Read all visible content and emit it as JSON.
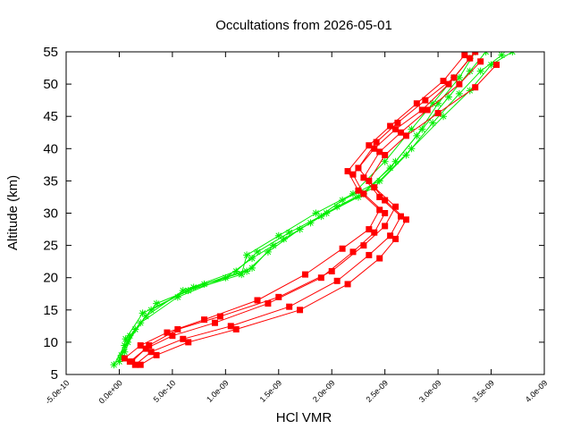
{
  "chart_data": {
    "type": "line",
    "title": "Occultations from 2026-05-01",
    "xlabel": "HCl VMR",
    "ylabel": "Altitude (km)",
    "xlim": [
      -5e-10,
      4e-09
    ],
    "ylim": [
      5,
      55
    ],
    "x_ticks": [
      "-5.0e-10",
      "0.0e+00",
      "5.0e-10",
      "1.0e-09",
      "1.5e-09",
      "2.0e-09",
      "2.5e-09",
      "3.0e-09",
      "3.5e-09",
      "4.0e-09"
    ],
    "y_ticks": [
      "5",
      "10",
      "15",
      "20",
      "25",
      "30",
      "35",
      "40",
      "45",
      "50",
      "55"
    ],
    "grid": false,
    "legend": "none",
    "colors": {
      "green_series": "#00ee00",
      "red_series": "#ff0000"
    },
    "series": [
      {
        "style": "green-star",
        "x": [
          0.0,
          8e-11,
          2.5e-10,
          6e-10,
          1.1e-09,
          1.3e-09,
          1.6e-09,
          1.95e-09,
          2.3e-09,
          2.6e-09,
          2.85e-09,
          3.1e-09,
          3.3e-09,
          3.45e-09
        ],
        "y": [
          7,
          10,
          14,
          18,
          21,
          24,
          27,
          30,
          33,
          38,
          43,
          48,
          52,
          55
        ]
      },
      {
        "style": "green-star",
        "x": [
          2e-11,
          1e-10,
          3e-10,
          7e-10,
          1.2e-09,
          1.4e-09,
          1.7e-09,
          2.05e-09,
          2.4e-09,
          2.7e-09,
          2.95e-09,
          3.2e-09,
          3.4e-09,
          3.6e-09
        ],
        "y": [
          8,
          11,
          15,
          18.5,
          21,
          24,
          27.5,
          31,
          34,
          39,
          44,
          48.5,
          52,
          54.5
        ]
      },
      {
        "style": "green-star",
        "x": [
          -5e-11,
          5e-11,
          2e-10,
          5.5e-10,
          1e-09,
          1.25e-09,
          1.55e-09,
          1.9e-09,
          2.25e-09,
          2.55e-09,
          2.8e-09,
          3e-09,
          3.2e-09,
          3.35e-09
        ],
        "y": [
          6.5,
          9.5,
          13,
          17,
          20,
          23,
          26,
          29.5,
          32.5,
          37,
          42,
          47,
          51,
          55
        ]
      },
      {
        "style": "green-star",
        "x": [
          5e-11,
          1.5e-10,
          3.5e-10,
          8e-10,
          1.25e-09,
          1.45e-09,
          1.8e-09,
          2.1e-09,
          2.45e-09,
          2.75e-09,
          3.05e-09,
          3.3e-09,
          3.5e-09,
          3.7e-09
        ],
        "y": [
          8.5,
          12,
          16,
          19,
          21.5,
          25,
          28.5,
          32,
          35,
          40,
          45,
          49,
          53,
          55
        ]
      },
      {
        "style": "green-star",
        "x": [
          1e-11,
          6e-11,
          2.2e-10,
          6.5e-10,
          1.15e-09,
          1.2e-09,
          1.5e-09,
          1.85e-09,
          2.2e-09,
          2.5e-09,
          2.75e-09,
          2.95e-09,
          3.15e-09,
          3.3e-09
        ],
        "y": [
          7.5,
          10.5,
          14.5,
          18,
          20.5,
          23.5,
          26.5,
          30,
          33,
          38,
          43,
          47,
          51,
          54
        ]
      },
      {
        "style": "red-square",
        "x": [
          1e-10,
          2.5e-10,
          5e-10,
          9e-10,
          1.4e-09,
          1.9e-09,
          2.2e-09,
          2.4e-09,
          2.5e-09,
          2.3e-09,
          2.2e-09,
          2.4e-09,
          2.6e-09,
          2.85e-09,
          3.1e-09,
          3.3e-09
        ],
        "y": [
          7,
          9,
          11,
          13,
          16,
          20,
          24,
          27,
          30,
          33,
          36,
          40,
          43,
          46,
          50,
          54
        ]
      },
      {
        "style": "red-square",
        "x": [
          1.5e-10,
          3e-10,
          6e-10,
          1.05e-09,
          1.6e-09,
          2.05e-09,
          2.35e-09,
          2.55e-09,
          2.65e-09,
          2.45e-09,
          2.3e-09,
          2.45e-09,
          2.65e-09,
          2.9e-09,
          3.2e-09,
          3.4e-09
        ],
        "y": [
          6.5,
          8.5,
          10.5,
          12.5,
          15.5,
          19.5,
          23.5,
          26.5,
          29.5,
          32.5,
          35.5,
          39.5,
          42.5,
          46,
          50,
          53.5
        ]
      },
      {
        "style": "red-square",
        "x": [
          5e-11,
          2e-10,
          4.5e-10,
          8e-10,
          1.3e-09,
          1.75e-09,
          2.1e-09,
          2.35e-09,
          2.45e-09,
          2.25e-09,
          2.15e-09,
          2.35e-09,
          2.55e-09,
          2.8e-09,
          3.05e-09,
          3.25e-09
        ],
        "y": [
          7.5,
          9.5,
          11.5,
          13.5,
          16.5,
          20.5,
          24.5,
          27.5,
          30.5,
          33.5,
          36.5,
          40.5,
          43.5,
          47,
          50.5,
          54.5
        ]
      },
      {
        "style": "red-square",
        "x": [
          2e-10,
          3.5e-10,
          6.5e-10,
          1.1e-09,
          1.7e-09,
          2.15e-09,
          2.45e-09,
          2.6e-09,
          2.7e-09,
          2.5e-09,
          2.35e-09,
          2.5e-09,
          2.7e-09,
          3e-09,
          3.35e-09,
          3.55e-09
        ],
        "y": [
          6.5,
          8,
          10,
          12,
          15,
          19,
          23,
          26,
          29,
          32,
          35,
          39,
          42,
          45.5,
          49.5,
          53
        ]
      },
      {
        "style": "red-square",
        "x": [
          1.2e-10,
          2.8e-10,
          5.5e-10,
          9.5e-10,
          1.5e-09,
          2e-09,
          2.3e-09,
          2.5e-09,
          2.6e-09,
          2.4e-09,
          2.25e-09,
          2.42e-09,
          2.62e-09,
          2.88e-09,
          3.15e-09,
          3.35e-09
        ],
        "y": [
          7,
          9.5,
          12,
          14,
          17,
          21,
          25,
          28,
          31,
          34,
          37,
          41,
          44,
          47.5,
          51,
          55
        ]
      }
    ]
  }
}
